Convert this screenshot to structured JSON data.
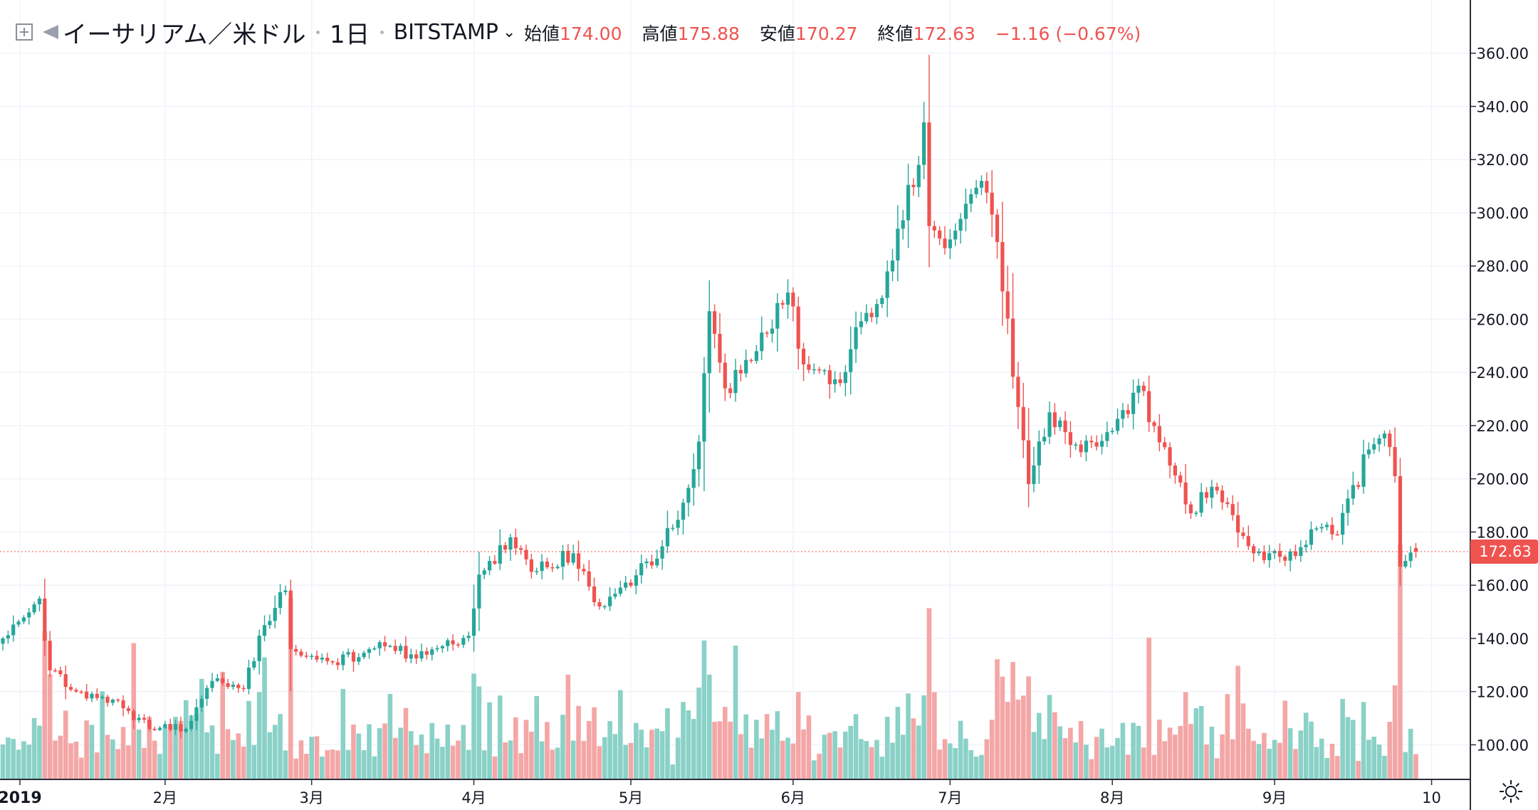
{
  "header": {
    "symbol": "イーサリアム／米ドル",
    "interval": "1日",
    "exchange": "BITSTAMP",
    "open_label": "始値",
    "open": "174.00",
    "high_label": "高値",
    "high": "175.88",
    "low_label": "安値",
    "low": "170.27",
    "close_label": "終値",
    "close": "172.63",
    "change": "−1.16 (−0.67%)"
  },
  "colors": {
    "up": "#26a69a",
    "down": "#ef5350",
    "up_volume": "#8ad1c7",
    "down_volume": "#f4a6a6",
    "grid": "#f0f3fa",
    "axis_text": "#131722"
  },
  "chart_data": {
    "type": "candlestick",
    "price_axis": {
      "ticks": [
        "360.00",
        "340.00",
        "320.00",
        "300.00",
        "280.00",
        "260.00",
        "240.00",
        "220.00",
        "200.00",
        "180.00",
        "160.00",
        "140.00",
        "120.00",
        "100.00"
      ],
      "ylim": [
        87,
        380
      ]
    },
    "last_price_label": "172.63",
    "last_price": 172.63,
    "time_axis": {
      "labels": [
        "2019",
        "2月",
        "3月",
        "4月",
        "5月",
        "6月",
        "7月",
        "8月",
        "9月",
        "10"
      ]
    },
    "month_anchor_closes": [
      [
        "2019-01-01",
        140
      ],
      [
        "2019-01-08",
        155
      ],
      [
        "2019-01-10",
        128
      ],
      [
        "2019-01-15",
        120
      ],
      [
        "2019-01-22",
        117
      ],
      [
        "2019-01-29",
        106
      ],
      [
        "2019-02-05",
        106
      ],
      [
        "2019-02-10",
        124
      ],
      [
        "2019-02-16",
        121
      ],
      [
        "2019-02-20",
        145
      ],
      [
        "2019-02-24",
        158
      ],
      [
        "2019-02-25",
        136
      ],
      [
        "2019-03-05",
        131
      ],
      [
        "2019-03-15",
        137
      ],
      [
        "2019-03-20",
        134
      ],
      [
        "2019-03-31",
        141
      ],
      [
        "2019-04-02",
        164
      ],
      [
        "2019-04-08",
        178
      ],
      [
        "2019-04-12",
        165
      ],
      [
        "2019-04-20",
        172
      ],
      [
        "2019-04-25",
        152
      ],
      [
        "2019-04-30",
        161
      ],
      [
        "2019-05-06",
        170
      ],
      [
        "2019-05-11",
        191
      ],
      [
        "2019-05-14",
        214
      ],
      [
        "2019-05-16",
        263
      ],
      [
        "2019-05-19",
        234
      ],
      [
        "2019-05-25",
        248
      ],
      [
        "2019-05-31",
        270
      ],
      [
        "2019-06-03",
        243
      ],
      [
        "2019-06-10",
        236
      ],
      [
        "2019-06-13",
        257
      ],
      [
        "2019-06-18",
        268
      ],
      [
        "2019-06-21",
        294
      ],
      [
        "2019-06-25",
        318
      ],
      [
        "2019-06-26",
        334
      ],
      [
        "2019-06-27",
        295
      ],
      [
        "2019-07-01",
        290
      ],
      [
        "2019-07-07",
        312
      ],
      [
        "2019-07-10",
        289
      ],
      [
        "2019-07-14",
        227
      ],
      [
        "2019-07-16",
        198
      ],
      [
        "2019-07-20",
        225
      ],
      [
        "2019-07-26",
        210
      ],
      [
        "2019-08-01",
        218
      ],
      [
        "2019-08-06",
        235
      ],
      [
        "2019-08-12",
        205
      ],
      [
        "2019-08-16",
        187
      ],
      [
        "2019-08-20",
        197
      ],
      [
        "2019-08-28",
        172
      ],
      [
        "2019-09-05",
        171
      ],
      [
        "2019-09-08",
        181
      ],
      [
        "2019-09-13",
        179
      ],
      [
        "2019-09-19",
        211
      ],
      [
        "2019-09-22",
        217
      ],
      [
        "2019-09-24",
        201
      ],
      [
        "2019-09-25",
        167
      ],
      [
        "2019-09-28",
        172.63
      ]
    ]
  }
}
